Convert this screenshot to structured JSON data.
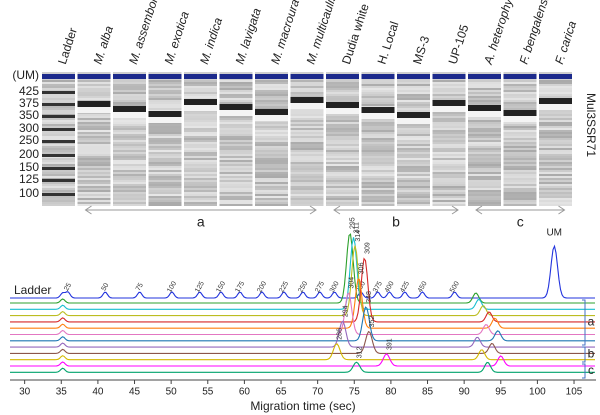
{
  "gel": {
    "lanes": [
      {
        "name": "Ladder",
        "italic": false
      },
      {
        "name": "M. alba",
        "italic": true
      },
      {
        "name": "M. assembola",
        "italic": true
      },
      {
        "name": "M. exotica",
        "italic": true
      },
      {
        "name": "M. indica",
        "italic": true
      },
      {
        "name": "M. lavigata",
        "italic": true
      },
      {
        "name": "M. macroura",
        "italic": true
      },
      {
        "name": "M. multicaulis",
        "italic": true
      },
      {
        "name": "Dudia white",
        "italic": false
      },
      {
        "name": "H. Local",
        "italic": false
      },
      {
        "name": "MS-3",
        "italic": false
      },
      {
        "name": "UP-105",
        "italic": false
      },
      {
        "name": "A. heterophyllus",
        "italic": true
      },
      {
        "name": "F. bengalensis",
        "italic": true
      },
      {
        "name": "F. carica",
        "italic": true
      }
    ],
    "size_labels": [
      "(UM)",
      "425",
      "375",
      "350",
      "300",
      "250",
      "200",
      "150",
      "125",
      "100"
    ],
    "marker": "Mul3SSR71",
    "groups": [
      "a",
      "b",
      "c"
    ]
  },
  "chart_data": {
    "type": "electropherogram",
    "xlabel": "Migration time (sec)",
    "xlim": [
      28,
      108
    ],
    "xticks": [
      30,
      35,
      40,
      45,
      50,
      55,
      60,
      65,
      70,
      75,
      80,
      85,
      90,
      95,
      100,
      105
    ],
    "ladder_label": "Ladder",
    "um_label": "UM",
    "um_time": 102.3,
    "lower_marker_time": 35.2,
    "ladder_peaks": [
      {
        "size": 25,
        "time": 35.9
      },
      {
        "size": 50,
        "time": 41.0
      },
      {
        "size": 75,
        "time": 45.7
      },
      {
        "size": 100,
        "time": 50.1
      },
      {
        "size": 125,
        "time": 53.9
      },
      {
        "size": 150,
        "time": 56.8
      },
      {
        "size": 175,
        "time": 59.4
      },
      {
        "size": 200,
        "time": 62.4
      },
      {
        "size": 225,
        "time": 65.4
      },
      {
        "size": 250,
        "time": 68.0
      },
      {
        "size": 275,
        "time": 70.3
      },
      {
        "size": 300,
        "time": 72.3
      },
      {
        "size": 350,
        "time": 75.9
      },
      {
        "size": 375,
        "time": 78.2
      },
      {
        "size": 400,
        "time": 79.8
      },
      {
        "size": 425,
        "time": 81.9
      },
      {
        "size": 450,
        "time": 84.3
      },
      {
        "size": 500,
        "time": 88.7
      }
    ],
    "traces": [
      {
        "color": "#2ca02c",
        "peak_size": 295,
        "peak_time": 74.4,
        "um_time": 91.6
      },
      {
        "color": "#17becf",
        "peak_size": 311,
        "peak_time": 74.9,
        "um_time": 92.0
      },
      {
        "color": "#bcbd22",
        "peak_size": 314,
        "peak_time": 75.1,
        "um_time": 92.6
      },
      {
        "color": "#d62728",
        "peak_size": 309,
        "peak_time": 76.4,
        "um_time": 93.4
      },
      {
        "color": "#ff7f0e",
        "peak_size": 306,
        "peak_time": 75.6,
        "um_time": 94.2
      },
      {
        "color": "#e377c2",
        "peak_size": 304,
        "peak_time": 74.2,
        "um_time": 93.0
      },
      {
        "color": "#1f77b4",
        "peak_size": 348,
        "peak_time": 76.6,
        "um_time": 94.6
      },
      {
        "color": "#9467bd",
        "peak_size": 294,
        "peak_time": 73.4,
        "um_time": 91.8
      },
      {
        "color": "#8c564b",
        "peak_size": 352,
        "peak_time": 77.0,
        "um_time": 93.8
      },
      {
        "color": "#d4b800",
        "peak_size": 286,
        "peak_time": 72.6,
        "um_time": 92.4
      },
      {
        "color": "#ff00ff",
        "peak_size": 391,
        "peak_time": 79.4,
        "um_time": 95.0
      },
      {
        "color": "#00a36c",
        "peak_size": 312,
        "peak_time": 75.3,
        "um_time": 93.2
      }
    ],
    "groups": [
      "a",
      "b",
      "c"
    ]
  }
}
